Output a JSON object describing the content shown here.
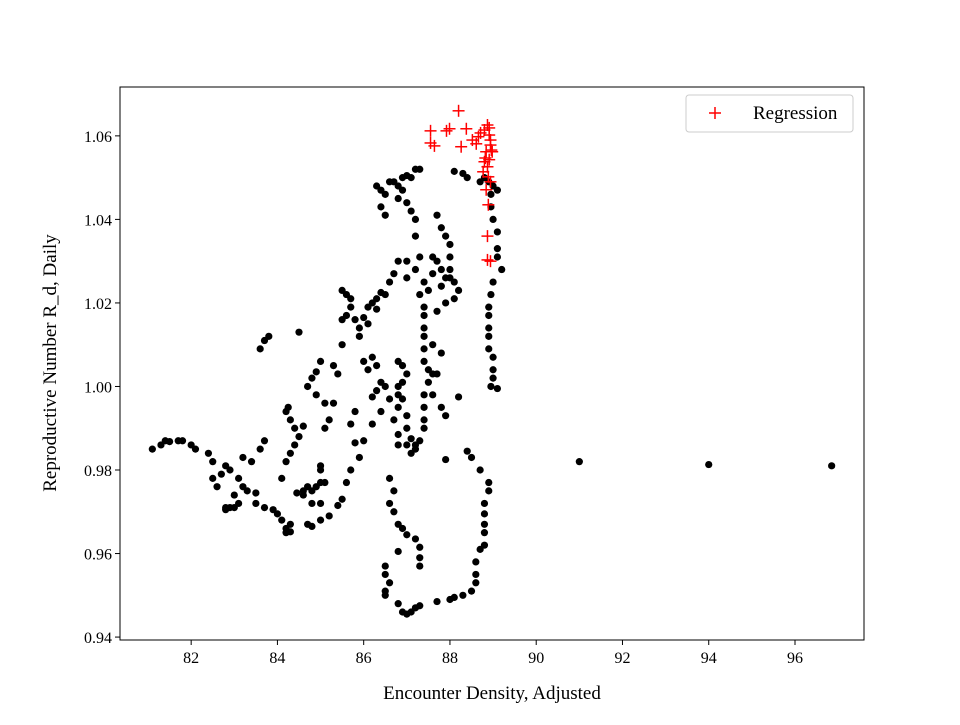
{
  "chart_data": {
    "type": "scatter",
    "title": "",
    "xlabel": "Encounter Density, Adjusted",
    "ylabel": "Reproductive Number R_d, Daily",
    "xlim": [
      80.35,
      97.6
    ],
    "ylim": [
      0.9393,
      1.0717
    ],
    "xticks": [
      82,
      84,
      86,
      88,
      90,
      92,
      94,
      96
    ],
    "yticks": [
      0.94,
      0.96,
      0.98,
      1.0,
      1.02,
      1.04,
      1.06
    ],
    "ytick_labels": [
      "0.94",
      "0.96",
      "0.98",
      "1.00",
      "1.02",
      "1.04",
      "1.06"
    ],
    "grid": false,
    "legend_placement": "top-right",
    "series": [
      {
        "marker": "dot",
        "color": "#000000",
        "points": [
          [
            81.1,
            0.985
          ],
          [
            81.3,
            0.986
          ],
          [
            81.4,
            0.987
          ],
          [
            81.5,
            0.9868
          ],
          [
            81.7,
            0.987
          ],
          [
            81.8,
            0.987
          ],
          [
            82.0,
            0.986
          ],
          [
            82.1,
            0.985
          ],
          [
            82.4,
            0.984
          ],
          [
            82.5,
            0.982
          ],
          [
            82.7,
            0.979
          ],
          [
            82.5,
            0.978
          ],
          [
            82.6,
            0.976
          ],
          [
            82.8,
            0.971
          ],
          [
            82.8,
            0.9705
          ],
          [
            82.9,
            0.971
          ],
          [
            83.0,
            0.971
          ],
          [
            83.1,
            0.972
          ],
          [
            82.8,
            0.981
          ],
          [
            82.9,
            0.98
          ],
          [
            83.1,
            0.978
          ],
          [
            83.2,
            0.976
          ],
          [
            83.0,
            0.974
          ],
          [
            83.3,
            0.975
          ],
          [
            83.5,
            0.9745
          ],
          [
            83.5,
            0.972
          ],
          [
            83.7,
            0.971
          ],
          [
            83.9,
            0.9705
          ],
          [
            84.0,
            0.9695
          ],
          [
            84.1,
            0.968
          ],
          [
            84.2,
            0.966
          ],
          [
            84.3,
            0.9652
          ],
          [
            84.2,
            0.965
          ],
          [
            84.3,
            0.967
          ],
          [
            84.1,
            0.978
          ],
          [
            84.2,
            0.982
          ],
          [
            84.3,
            0.984
          ],
          [
            84.4,
            0.986
          ],
          [
            84.5,
            0.988
          ],
          [
            84.2,
            0.994
          ],
          [
            84.25,
            0.995
          ],
          [
            84.3,
            0.992
          ],
          [
            84.4,
            0.99
          ],
          [
            84.6,
            0.9905
          ],
          [
            84.45,
            0.9745
          ],
          [
            84.6,
            0.975
          ],
          [
            84.7,
            0.976
          ],
          [
            84.8,
            0.975
          ],
          [
            84.9,
            0.976
          ],
          [
            85.0,
            0.977
          ],
          [
            84.8,
            0.972
          ],
          [
            85.0,
            0.972
          ],
          [
            84.7,
            0.967
          ],
          [
            84.8,
            0.9665
          ],
          [
            85.0,
            0.968
          ],
          [
            85.2,
            0.969
          ],
          [
            85.4,
            0.9715
          ],
          [
            85.5,
            0.973
          ],
          [
            85.6,
            0.977
          ],
          [
            85.7,
            0.98
          ],
          [
            85.9,
            0.983
          ],
          [
            86.0,
            0.987
          ],
          [
            86.2,
            0.991
          ],
          [
            86.4,
            0.994
          ],
          [
            86.6,
            0.997
          ],
          [
            86.8,
            1.0
          ],
          [
            83.6,
            0.985
          ],
          [
            83.7,
            0.987
          ],
          [
            83.4,
            0.982
          ],
          [
            83.2,
            0.983
          ],
          [
            83.6,
            1.009
          ],
          [
            83.7,
            1.011
          ],
          [
            83.8,
            1.012
          ],
          [
            84.5,
            1.013
          ],
          [
            84.7,
            1.0
          ],
          [
            84.8,
            1.002
          ],
          [
            84.9,
            1.0035
          ],
          [
            85.0,
            1.006
          ],
          [
            84.9,
            0.998
          ],
          [
            85.1,
            0.996
          ],
          [
            85.3,
            0.996
          ],
          [
            85.2,
            0.992
          ],
          [
            85.1,
            0.99
          ],
          [
            85.0,
            0.98
          ],
          [
            85.0,
            0.981
          ],
          [
            85.1,
            0.977
          ],
          [
            85.3,
            1.005
          ],
          [
            85.4,
            1.003
          ],
          [
            85.5,
            1.01
          ],
          [
            85.5,
            1.016
          ],
          [
            85.6,
            1.017
          ],
          [
            85.7,
            1.021
          ],
          [
            85.7,
            1.019
          ],
          [
            85.8,
            1.016
          ],
          [
            85.9,
            1.014
          ],
          [
            85.9,
            1.012
          ],
          [
            86.0,
            1.0165
          ],
          [
            86.1,
            1.019
          ],
          [
            86.3,
            1.021
          ],
          [
            86.4,
            1.0225
          ],
          [
            86.2,
            1.02
          ],
          [
            86.0,
            1.006
          ],
          [
            86.1,
            1.004
          ],
          [
            86.2,
            1.007
          ],
          [
            86.3,
            1.005
          ],
          [
            86.4,
            1.001
          ],
          [
            86.5,
            1.0
          ],
          [
            85.8,
            0.994
          ],
          [
            85.7,
            0.991
          ],
          [
            85.8,
            0.9865
          ],
          [
            86.2,
            0.9975
          ],
          [
            86.3,
            0.999
          ],
          [
            84.6,
            0.974
          ],
          [
            85.5,
            1.023
          ],
          [
            85.6,
            1.022
          ],
          [
            86.3,
            1.048
          ],
          [
            86.4,
            1.047
          ],
          [
            86.5,
            1.046
          ],
          [
            86.4,
            1.043
          ],
          [
            86.5,
            1.041
          ],
          [
            86.6,
            1.049
          ],
          [
            86.7,
            1.049
          ],
          [
            86.8,
            1.048
          ],
          [
            86.9,
            1.05
          ],
          [
            87.0,
            1.0505
          ],
          [
            87.1,
            1.05
          ],
          [
            86.9,
            1.047
          ],
          [
            86.8,
            1.045
          ],
          [
            87.0,
            1.044
          ],
          [
            87.1,
            1.042
          ],
          [
            87.2,
            1.04
          ],
          [
            87.0,
            1.03
          ],
          [
            87.2,
            1.036
          ],
          [
            87.0,
            1.026
          ],
          [
            86.8,
            1.03
          ],
          [
            86.7,
            1.027
          ],
          [
            86.6,
            1.025
          ],
          [
            86.5,
            1.022
          ],
          [
            86.3,
            1.0185
          ],
          [
            86.1,
            1.015
          ],
          [
            87.3,
            1.031
          ],
          [
            87.2,
            1.028
          ],
          [
            87.4,
            1.025
          ],
          [
            87.5,
            1.023
          ],
          [
            87.3,
            1.022
          ],
          [
            87.4,
            1.019
          ],
          [
            87.4,
            1.017
          ],
          [
            87.4,
            1.014
          ],
          [
            87.4,
            1.012
          ],
          [
            87.4,
            1.009
          ],
          [
            87.4,
            1.006
          ],
          [
            87.5,
            1.004
          ],
          [
            87.6,
            1.003
          ],
          [
            87.5,
            1.001
          ],
          [
            87.4,
            0.998
          ],
          [
            87.4,
            0.995
          ],
          [
            87.4,
            0.992
          ],
          [
            87.4,
            0.99
          ],
          [
            87.3,
            0.987
          ],
          [
            87.2,
            0.986
          ],
          [
            87.1,
            0.984
          ],
          [
            87.0,
            0.986
          ],
          [
            87.7,
            1.041
          ],
          [
            87.8,
            1.038
          ],
          [
            87.9,
            1.036
          ],
          [
            88.0,
            1.034
          ],
          [
            88.0,
            1.031
          ],
          [
            88.0,
            1.028
          ],
          [
            88.0,
            1.026
          ],
          [
            88.1,
            1.025
          ],
          [
            88.2,
            1.023
          ],
          [
            88.1,
            1.021
          ],
          [
            87.9,
            1.026
          ],
          [
            87.8,
            1.028
          ],
          [
            87.9,
            1.02
          ],
          [
            87.6,
            1.031
          ],
          [
            87.7,
            1.03
          ],
          [
            87.6,
            1.027
          ],
          [
            87.8,
            1.024
          ],
          [
            87.7,
            1.018
          ],
          [
            87.6,
            1.01
          ],
          [
            87.8,
            1.008
          ],
          [
            87.7,
            1.003
          ],
          [
            87.6,
            0.998
          ],
          [
            86.8,
            1.006
          ],
          [
            86.9,
            1.005
          ],
          [
            86.9,
            1.001
          ],
          [
            86.8,
            0.998
          ],
          [
            86.8,
            0.995
          ],
          [
            86.7,
            0.992
          ],
          [
            86.8,
            0.9885
          ],
          [
            86.8,
            0.986
          ],
          [
            87.0,
            0.99
          ],
          [
            87.1,
            0.9875
          ],
          [
            87.2,
            0.985
          ],
          [
            87.0,
            0.993
          ],
          [
            86.9,
            0.997
          ],
          [
            87.0,
            1.003
          ],
          [
            86.6,
            0.978
          ],
          [
            86.7,
            0.975
          ],
          [
            86.6,
            0.972
          ],
          [
            86.7,
            0.97
          ],
          [
            86.8,
            0.967
          ],
          [
            86.9,
            0.966
          ],
          [
            87.0,
            0.9645
          ],
          [
            87.2,
            0.9635
          ],
          [
            87.3,
            0.9615
          ],
          [
            87.3,
            0.959
          ],
          [
            87.3,
            0.957
          ],
          [
            86.8,
            0.9605
          ],
          [
            86.5,
            0.957
          ],
          [
            86.5,
            0.955
          ],
          [
            86.6,
            0.953
          ],
          [
            86.5,
            0.951
          ],
          [
            86.5,
            0.95
          ],
          [
            86.8,
            0.948
          ],
          [
            86.9,
            0.946
          ],
          [
            87.0,
            0.9455
          ],
          [
            87.1,
            0.946
          ],
          [
            87.2,
            0.947
          ],
          [
            87.3,
            0.9475
          ],
          [
            87.7,
            0.9485
          ],
          [
            88.0,
            0.949
          ],
          [
            88.1,
            0.9495
          ],
          [
            88.3,
            0.95
          ],
          [
            88.5,
            0.951
          ],
          [
            88.6,
            0.953
          ],
          [
            88.6,
            0.955
          ],
          [
            88.6,
            0.958
          ],
          [
            88.7,
            0.961
          ],
          [
            88.8,
            0.962
          ],
          [
            88.8,
            0.965
          ],
          [
            88.8,
            0.967
          ],
          [
            88.8,
            0.9695
          ],
          [
            88.8,
            0.972
          ],
          [
            88.9,
            0.975
          ],
          [
            88.9,
            0.977
          ],
          [
            88.7,
            0.98
          ],
          [
            88.5,
            0.983
          ],
          [
            88.4,
            0.9845
          ],
          [
            87.9,
            0.9825
          ],
          [
            88.2,
            0.9975
          ],
          [
            87.8,
            0.995
          ],
          [
            87.9,
            0.993
          ],
          [
            88.8,
            1.05
          ],
          [
            88.9,
            1.049
          ],
          [
            89.0,
            1.048
          ],
          [
            89.1,
            1.047
          ],
          [
            88.95,
            1.046
          ],
          [
            88.95,
            1.043
          ],
          [
            89.0,
            1.04
          ],
          [
            89.1,
            1.037
          ],
          [
            89.1,
            1.033
          ],
          [
            89.1,
            1.031
          ],
          [
            89.2,
            1.028
          ],
          [
            89.0,
            1.025
          ],
          [
            88.95,
            1.022
          ],
          [
            88.9,
            1.019
          ],
          [
            88.9,
            1.017
          ],
          [
            88.9,
            1.014
          ],
          [
            88.9,
            1.012
          ],
          [
            88.9,
            1.009
          ],
          [
            89.0,
            1.007
          ],
          [
            89.0,
            1.004
          ],
          [
            89.0,
            1.002
          ],
          [
            88.95,
            1.0
          ],
          [
            89.1,
            0.9995
          ],
          [
            87.2,
            1.052
          ],
          [
            87.3,
            1.052
          ],
          [
            88.1,
            1.0515
          ],
          [
            88.4,
            1.05
          ],
          [
            88.3,
            1.051
          ],
          [
            88.7,
            1.049
          ],
          [
            91.0,
            0.982
          ],
          [
            94.0,
            0.9813
          ],
          [
            96.85,
            0.981
          ]
        ]
      },
      {
        "name": "Regression",
        "marker": "plus",
        "color": "#ff0000",
        "points": [
          [
            87.55,
            1.0612
          ],
          [
            87.55,
            1.0583
          ],
          [
            87.64,
            1.0576
          ],
          [
            87.92,
            1.0612
          ],
          [
            87.99,
            1.0617
          ],
          [
            88.2,
            1.066
          ],
          [
            88.26,
            1.0574
          ],
          [
            88.38,
            1.0617
          ],
          [
            88.52,
            1.059
          ],
          [
            88.61,
            1.0581
          ],
          [
            88.66,
            1.0598
          ],
          [
            88.71,
            1.0607
          ],
          [
            88.8,
            1.0614
          ],
          [
            88.87,
            1.0626
          ],
          [
            88.91,
            1.0619
          ],
          [
            88.91,
            1.0602
          ],
          [
            88.94,
            1.059
          ],
          [
            88.94,
            1.0578
          ],
          [
            88.96,
            1.0566
          ],
          [
            88.84,
            1.0562
          ],
          [
            88.82,
            1.0547
          ],
          [
            88.91,
            1.0543
          ],
          [
            88.8,
            1.0538
          ],
          [
            88.87,
            1.0526
          ],
          [
            88.77,
            1.0514
          ],
          [
            88.89,
            1.0502
          ],
          [
            88.94,
            1.049
          ],
          [
            88.84,
            1.0471
          ],
          [
            88.89,
            1.0435
          ],
          [
            88.87,
            1.036
          ],
          [
            88.87,
            1.0303
          ],
          [
            88.94,
            1.03
          ],
          [
            88.98,
            1.0562
          ]
        ]
      }
    ]
  }
}
